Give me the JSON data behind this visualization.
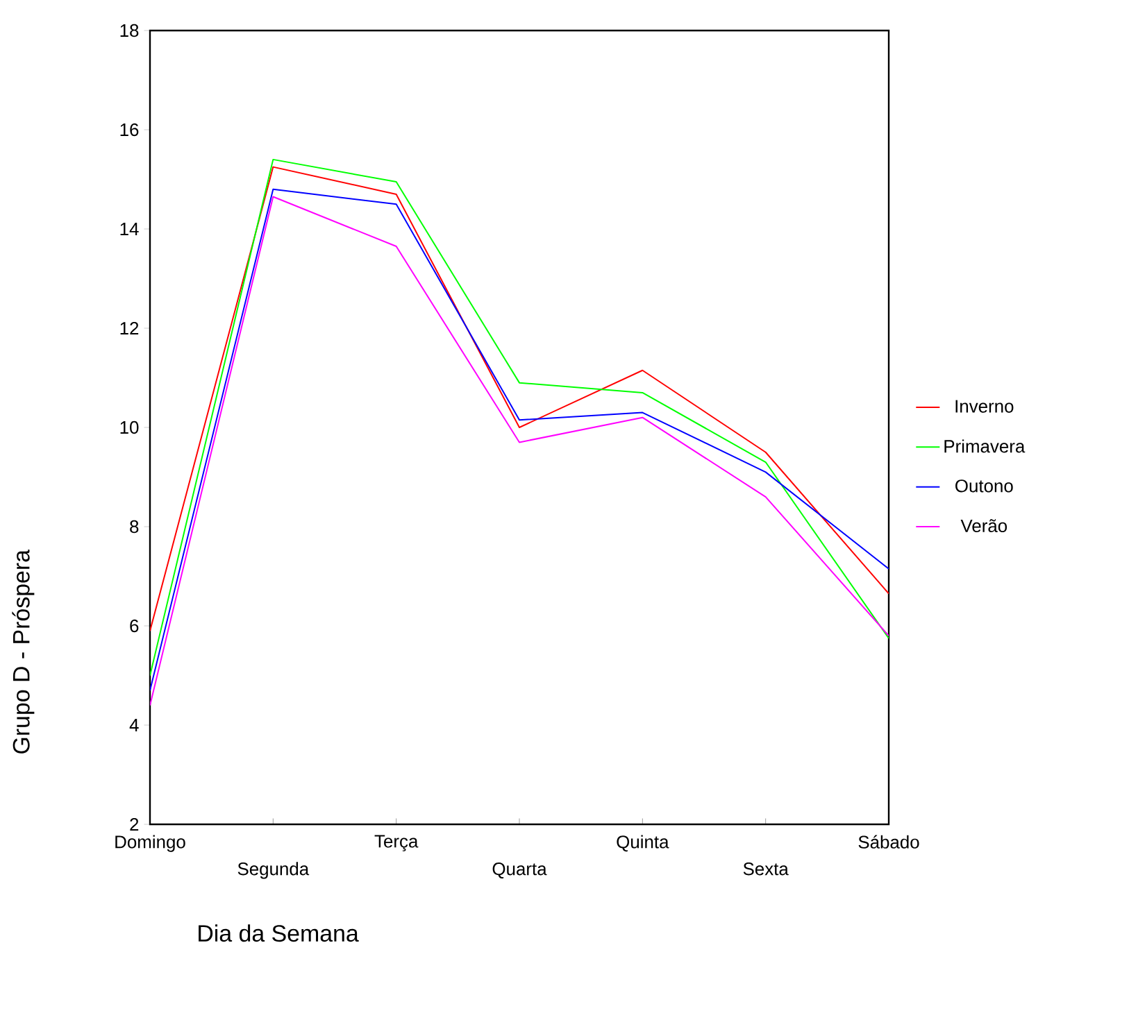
{
  "chart_data": {
    "type": "line",
    "xlabel": "Dia da Semana",
    "ylabel": "Grupo D - Próspera",
    "categories": [
      "Domingo",
      "Segunda",
      "Terça",
      "Quarta",
      "Quinta",
      "Sexta",
      "Sábado"
    ],
    "series": [
      {
        "name": "Inverno",
        "color": "#ff0000",
        "values": [
          5.9,
          15.25,
          14.7,
          10.0,
          11.15,
          9.5,
          6.65
        ]
      },
      {
        "name": "Primavera",
        "color": "#00ff00",
        "values": [
          5.0,
          15.4,
          14.95,
          10.9,
          10.7,
          9.3,
          5.75
        ]
      },
      {
        "name": "Outono",
        "color": "#0000ff",
        "values": [
          4.7,
          14.8,
          14.5,
          10.15,
          10.3,
          9.1,
          7.15
        ]
      },
      {
        "name": "Verão",
        "color": "#ff00ff",
        "values": [
          4.4,
          14.65,
          13.65,
          9.7,
          10.2,
          8.6,
          5.8
        ]
      }
    ],
    "ylim": [
      2,
      18
    ],
    "yticks": [
      2,
      4,
      6,
      8,
      10,
      12,
      14,
      16,
      18
    ],
    "legend": "right",
    "grid": false,
    "marker": "none",
    "line_style": "solid"
  }
}
